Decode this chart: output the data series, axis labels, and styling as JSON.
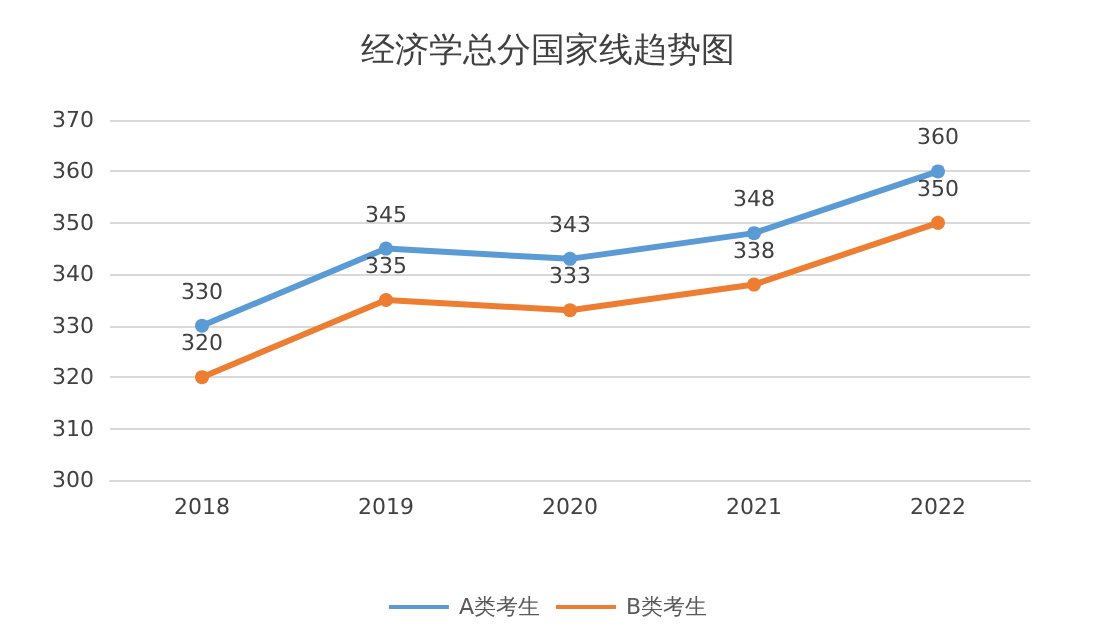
{
  "chart_data": {
    "type": "line",
    "title": "经济学总分国家线趋势图",
    "categories": [
      "2018",
      "2019",
      "2020",
      "2021",
      "2022"
    ],
    "series": [
      {
        "name": "A类考生",
        "color": "#5b9bd5",
        "values": [
          330,
          345,
          343,
          348,
          360
        ]
      },
      {
        "name": "B类考生",
        "color": "#ed7d31",
        "values": [
          320,
          335,
          333,
          338,
          350
        ]
      }
    ],
    "ylim": [
      300,
      370
    ],
    "yticks": [
      300,
      310,
      320,
      330,
      340,
      350,
      360,
      370
    ],
    "grid": "y",
    "legend": "bottom",
    "marker": "circle",
    "line_style": "solid",
    "data_labels": true
  }
}
